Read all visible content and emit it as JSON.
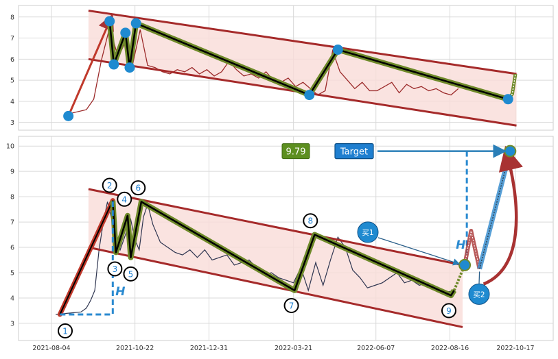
{
  "chart_data": [
    {
      "panel": "top",
      "type": "line",
      "ylim": [
        2.7,
        8.5
      ],
      "yticks": [
        3,
        4,
        5,
        6,
        7,
        8
      ],
      "grid": true,
      "series": [
        {
          "x": [
            "2021-08-20",
            "2021-09-06",
            "2021-09-13",
            "2021-09-20",
            "2021-09-28",
            "2021-10-06",
            "2021-10-13",
            "2021-10-20",
            "2021-10-27",
            "2021-11-03",
            "2021-11-10",
            "2021-11-17",
            "2021-11-24",
            "2021-12-01",
            "2021-12-08",
            "2021-12-15",
            "2021-12-22",
            "2021-12-29",
            "2022-01-05",
            "2022-01-12",
            "2022-01-19",
            "2022-01-26",
            "2022-02-02",
            "2022-02-09",
            "2022-02-16",
            "2022-02-23",
            "2022-03-02",
            "2022-03-09",
            "2022-03-16",
            "2022-03-23",
            "2022-03-30",
            "2022-04-06",
            "2022-04-13",
            "2022-04-20",
            "2022-04-27",
            "2022-05-04",
            "2022-05-11",
            "2022-05-18",
            "2022-05-25",
            "2022-06-01",
            "2022-06-08",
            "2022-06-15",
            "2022-06-22",
            "2022-06-29",
            "2022-07-06",
            "2022-07-13",
            "2022-07-20",
            "2022-07-27",
            "2022-08-03",
            "2022-08-10",
            "2022-08-17",
            "2022-08-24"
          ],
          "values": [
            3.4,
            3.6,
            4.1,
            5.9,
            7.5,
            6.1,
            6.8,
            5.8,
            7.4,
            5.7,
            5.6,
            5.4,
            5.3,
            5.5,
            5.4,
            5.6,
            5.3,
            5.5,
            5.2,
            5.4,
            5.9,
            5.5,
            5.2,
            5.3,
            5.1,
            5.4,
            5.0,
            4.9,
            5.1,
            4.7,
            4.9,
            4.6,
            4.3,
            4.5,
            6.4,
            5.4,
            5.0,
            4.6,
            4.9,
            4.5,
            4.5,
            4.7,
            4.9,
            4.4,
            4.8,
            4.6,
            4.7,
            4.5,
            4.6,
            4.4,
            4.3,
            4.6
          ]
        }
      ],
      "zigzag": {
        "x": [
          "2021-08-20",
          "2021-09-28",
          "2021-10-02",
          "2021-10-13",
          "2021-10-17",
          "2021-10-23",
          "2022-04-05",
          "2022-05-02",
          "2022-10-10",
          "2022-10-14",
          "2022-10-17"
        ],
        "values": [
          3.3,
          7.8,
          5.75,
          7.25,
          5.6,
          7.7,
          4.3,
          6.45,
          4.1,
          4.35,
          5.3
        ]
      },
      "channel_upper": {
        "x": [
          "2021-09-08",
          "2022-10-18"
        ],
        "values": [
          8.3,
          5.3
        ]
      },
      "channel_lower": {
        "x": [
          "2021-09-08",
          "2022-10-18"
        ],
        "values": [
          6.0,
          2.85
        ]
      },
      "pivots": [
        {
          "x": "2021-08-20",
          "value": 3.3
        },
        {
          "x": "2021-09-28",
          "value": 7.8
        },
        {
          "x": "2021-10-02",
          "value": 5.75
        },
        {
          "x": "2021-10-13",
          "value": 7.25
        },
        {
          "x": "2021-10-17",
          "value": 5.6
        },
        {
          "x": "2021-10-23",
          "value": 7.7
        },
        {
          "x": "2022-04-05",
          "value": 4.3
        },
        {
          "x": "2022-05-02",
          "value": 6.45
        },
        {
          "x": "2022-10-10",
          "value": 4.1
        }
      ]
    },
    {
      "panel": "bottom",
      "type": "line",
      "xlabels": [
        "2021-08-04",
        "2021-10-22",
        "2021-12-31",
        "2022-03-21",
        "2022-06-07",
        "2022-08-16",
        "2022-10-17"
      ],
      "ylim": [
        2.3,
        10.4
      ],
      "yticks": [
        3,
        4,
        5,
        6,
        7,
        8,
        9,
        10
      ],
      "grid": true,
      "series": [
        {
          "x": [
            "2021-08-08",
            "2021-08-20",
            "2021-09-01",
            "2021-09-06",
            "2021-09-10",
            "2021-09-14",
            "2021-09-18",
            "2021-09-22",
            "2021-09-26",
            "2021-09-29",
            "2021-10-03",
            "2021-10-08",
            "2021-10-13",
            "2021-10-18",
            "2021-10-22",
            "2021-10-26",
            "2021-10-30",
            "2021-11-03",
            "2021-11-08",
            "2021-11-15",
            "2021-11-22",
            "2021-11-29",
            "2021-12-06",
            "2021-12-13",
            "2021-12-20",
            "2021-12-27",
            "2022-01-03",
            "2022-01-10",
            "2022-01-17",
            "2022-01-24",
            "2022-01-31",
            "2022-02-07",
            "2022-02-14",
            "2022-02-21",
            "2022-02-28",
            "2022-03-07",
            "2022-03-14",
            "2022-03-21",
            "2022-03-28",
            "2022-04-04",
            "2022-04-11",
            "2022-04-18",
            "2022-04-25",
            "2022-05-02",
            "2022-05-09",
            "2022-05-16",
            "2022-05-23",
            "2022-05-30",
            "2022-06-06",
            "2022-06-13",
            "2022-06-20",
            "2022-06-27",
            "2022-07-04",
            "2022-07-11",
            "2022-07-18",
            "2022-07-25",
            "2022-08-01",
            "2022-08-08",
            "2022-08-15",
            "2022-08-20"
          ],
          "values": [
            3.35,
            3.4,
            3.45,
            3.6,
            3.9,
            4.3,
            5.9,
            7.0,
            7.8,
            7.3,
            6.6,
            5.9,
            6.5,
            7.1,
            6.3,
            5.9,
            7.2,
            7.7,
            6.9,
            6.2,
            6.0,
            5.8,
            5.7,
            5.9,
            5.6,
            5.9,
            5.5,
            5.6,
            5.7,
            5.3,
            5.4,
            5.5,
            5.2,
            4.9,
            5.0,
            4.8,
            4.7,
            4.6,
            5.2,
            4.3,
            5.4,
            4.5,
            5.5,
            6.4,
            6.0,
            5.1,
            4.8,
            4.4,
            4.5,
            4.6,
            4.8,
            5.0,
            4.6,
            4.7,
            4.5,
            4.6,
            4.4,
            4.3,
            4.25,
            4.3
          ]
        }
      ],
      "zigzag": {
        "x": [
          "2021-08-12",
          "2021-10-01",
          "2021-10-04",
          "2021-10-15",
          "2021-10-18",
          "2021-10-28",
          "2022-03-22",
          "2022-04-10",
          "2022-08-17",
          "2022-08-20"
        ],
        "values": [
          3.35,
          7.85,
          5.8,
          7.25,
          5.6,
          7.8,
          4.3,
          6.5,
          4.1,
          4.3
        ]
      },
      "channel_upper": {
        "x": [
          "2021-09-08",
          "2022-08-28"
        ],
        "values": [
          8.3,
          5.3
        ]
      },
      "channel_lower": {
        "x": [
          "2021-09-08",
          "2022-08-28"
        ],
        "values": [
          6.0,
          2.85
        ]
      },
      "pivot_labels": [
        {
          "label": "1",
          "x": "2021-08-17",
          "value": 2.7
        },
        {
          "label": "2",
          "x": "2021-09-28",
          "value": 8.45
        },
        {
          "label": "3",
          "x": "2021-10-03",
          "value": 5.15
        },
        {
          "label": "4",
          "x": "2021-10-12",
          "value": 7.9
        },
        {
          "label": "5",
          "x": "2021-10-18",
          "value": 4.95
        },
        {
          "label": "6",
          "x": "2021-10-25",
          "value": 8.35
        },
        {
          "label": "7",
          "x": "2022-03-19",
          "value": 3.7
        },
        {
          "label": "8",
          "x": "2022-04-06",
          "value": 7.05
        },
        {
          "label": "9",
          "x": "2022-08-15",
          "value": 3.5
        }
      ],
      "projection": {
        "x": [
          "2022-08-20",
          "2022-08-30",
          "2022-09-05",
          "2022-09-13",
          "2022-10-12"
        ],
        "values": [
          4.3,
          5.3,
          6.65,
          5.15,
          9.8
        ]
      },
      "markers": [
        {
          "x": "2022-08-30",
          "value": 5.3
        },
        {
          "x": "2022-10-12",
          "value": 9.8
        }
      ],
      "value_label": "9.79",
      "target_label": "Target",
      "buy_labels": [
        "买1",
        "买2"
      ],
      "height_label": "H",
      "colors": {
        "price": "#2e3550",
        "channel": "#a52a2a",
        "zigzag_outer": "#6f8a2a",
        "zigzag_inner": "#000000",
        "marker": "#1f8ad0",
        "channel_fill": "#f9dcd8",
        "value_box": "#5d8f20",
        "target_box": "#1f7fd0",
        "projection_red": "#a83232",
        "projection_blue": "#3a8fd0"
      }
    }
  ]
}
